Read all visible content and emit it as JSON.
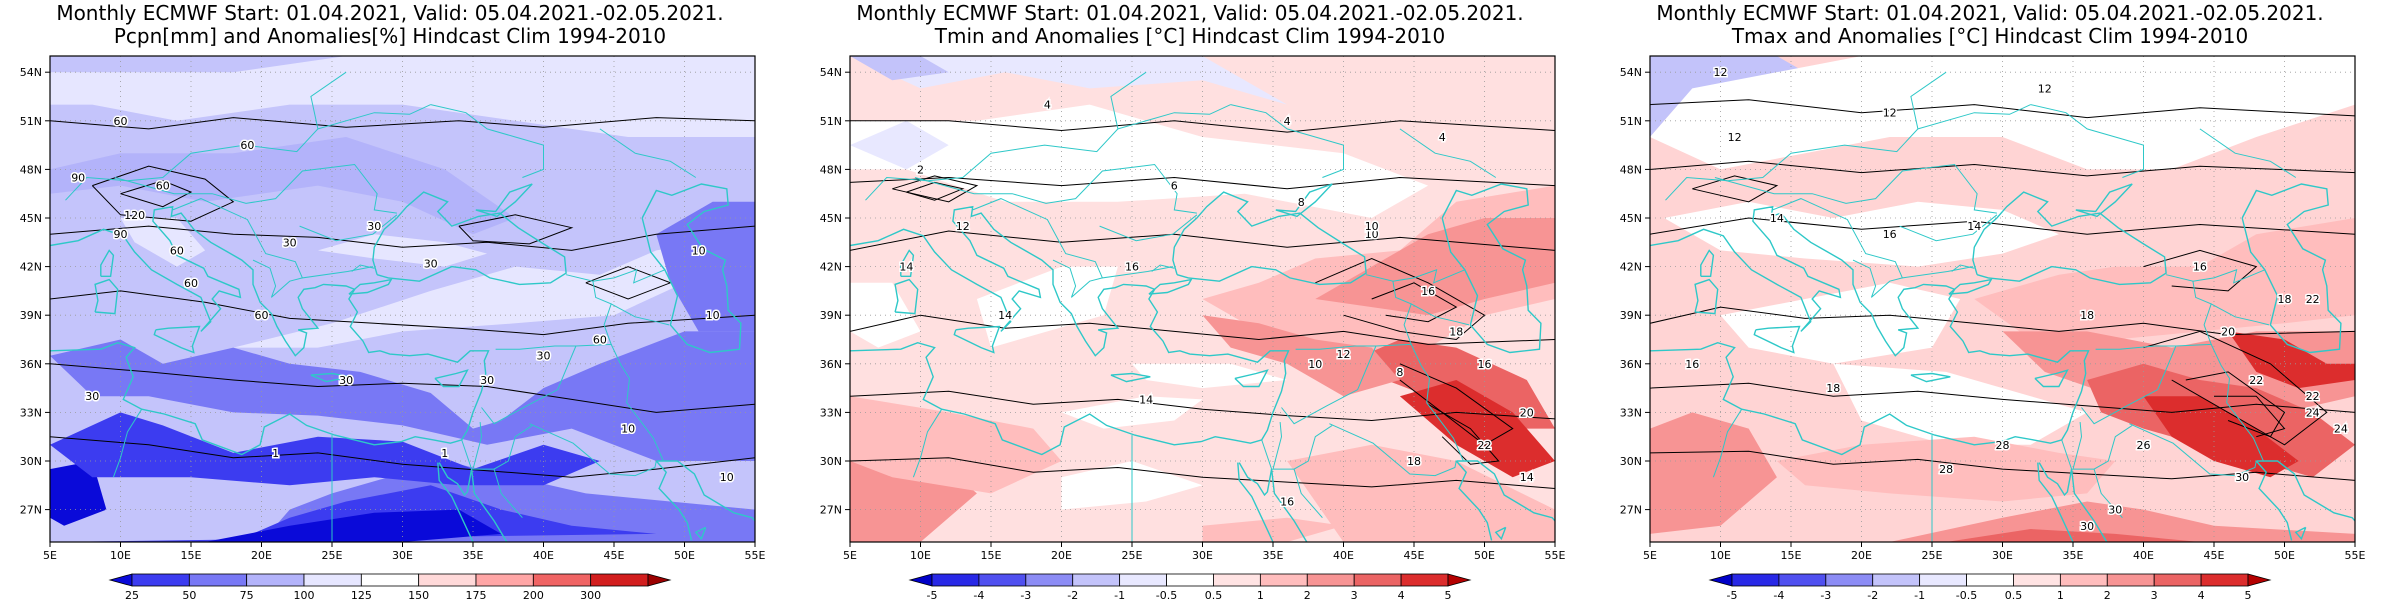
{
  "panels": [
    {
      "title_line1": "Monthly ECMWF Start: 01.04.2021, Valid: 05.04.2021.-02.05.2021.",
      "title_line2": "Pcpn[mm] and Anomalies[%] Hindcast Clim 1994-2010",
      "colorbar_labels": [
        "25",
        "50",
        "75",
        "100",
        "125",
        "150",
        "175",
        "200",
        "300"
      ],
      "colorbar_colors": [
        "#0a0ad9",
        "#3c3cf0",
        "#7878f5",
        "#b3b3fa",
        "#e6e6ff",
        "#ffffff",
        "#ffd9d9",
        "#ffa6a6",
        "#f06464",
        "#d21e1e",
        "#9b0000"
      ],
      "base_color": "#c4c4fb",
      "contour_labels": [
        "60",
        "60",
        "60",
        "90",
        "120",
        "90",
        "60",
        "30",
        "30",
        "10",
        "30",
        "60",
        "10",
        "30",
        "30",
        "60",
        "30",
        "10",
        "1",
        "1",
        "10",
        "30",
        "60"
      ]
    },
    {
      "title_line1": "Monthly ECMWF Start: 01.04.2021, Valid: 05.04.2021.-02.05.2021.",
      "title_line2": "Tmin and Anomalies [°C] Hindcast Clim 1994-2010",
      "colorbar_labels": [
        "-5",
        "-4",
        "-3",
        "-2",
        "-1",
        "-0.5",
        "0.5",
        "1",
        "2",
        "3",
        "4",
        "5"
      ],
      "colorbar_colors": [
        "#0000c8",
        "#2828e6",
        "#5050f0",
        "#8c8cf5",
        "#c3c3fa",
        "#e8e8ff",
        "#ffffff",
        "#ffe3e3",
        "#ffbdbd",
        "#f79494",
        "#eb6464",
        "#dc2d2d",
        "#b40000"
      ],
      "base_color": "#ffe0e0",
      "contour_labels": [
        "4",
        "4",
        "2",
        "6",
        "8",
        "10",
        "4",
        "12",
        "14",
        "16",
        "14",
        "10",
        "12",
        "8",
        "16",
        "18",
        "16",
        "20",
        "14",
        "18",
        "16",
        "22",
        "10",
        "14"
      ]
    },
    {
      "title_line1": "Monthly ECMWF Start: 01.04.2021, Valid: 05.04.2021.-02.05.2021.",
      "title_line2": "Tmax and Anomalies [°C] Hindcast Clim 1994-2010",
      "colorbar_labels": [
        "-5",
        "-4",
        "-3",
        "-2",
        "-1",
        "-0.5",
        "0.5",
        "1",
        "2",
        "3",
        "4",
        "5"
      ],
      "colorbar_colors": [
        "#0000c8",
        "#2828e6",
        "#5050f0",
        "#8c8cf5",
        "#c3c3fa",
        "#e8e8ff",
        "#ffffff",
        "#ffe3e3",
        "#ffbdbd",
        "#f79494",
        "#eb6464",
        "#dc2d2d",
        "#b40000"
      ],
      "base_color": "#ffd4d4",
      "contour_labels": [
        "12",
        "12",
        "12",
        "14",
        "16",
        "14",
        "18",
        "16",
        "20",
        "22",
        "24",
        "18",
        "26",
        "28",
        "30",
        "22",
        "24",
        "28",
        "30",
        "30",
        "18",
        "16",
        "12",
        "22"
      ]
    }
  ],
  "map_axes": {
    "lat_labels": [
      "54N",
      "51N",
      "48N",
      "45N",
      "42N",
      "39N",
      "36N",
      "33N",
      "30N",
      "27N"
    ],
    "lon_labels": [
      "5E",
      "10E",
      "15E",
      "20E",
      "25E",
      "30E",
      "35E",
      "40E",
      "45E",
      "50E",
      "55E"
    ]
  },
  "colors": {
    "coast": "#2ec8c8",
    "contour": "#000000",
    "frame": "#000000"
  }
}
